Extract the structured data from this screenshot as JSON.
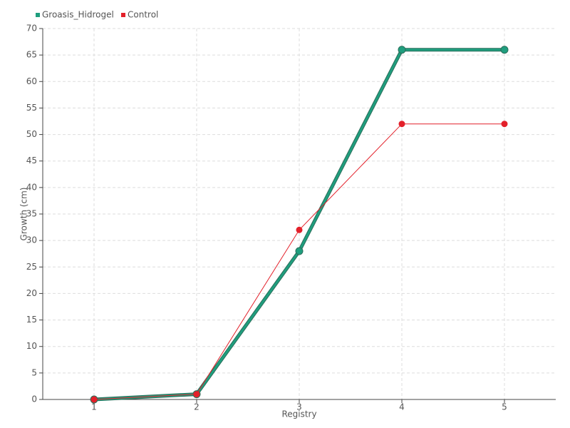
{
  "chart_data": {
    "type": "line",
    "x_label": "Registry",
    "y_label": "Growth (cm)",
    "x": [
      1,
      2,
      3,
      4,
      5
    ],
    "series": [
      {
        "name": "Groasis_Hidrogel",
        "color": "#1f9e7e",
        "values": [
          0,
          1,
          28,
          66,
          66
        ]
      },
      {
        "name": "Control",
        "color": "#e3202a",
        "values": [
          0,
          1,
          32,
          52,
          52
        ]
      }
    ],
    "xlim": [
      0.5,
      5.5
    ],
    "xticks": [
      1,
      2,
      3,
      4,
      5
    ],
    "ylim": [
      0,
      70
    ],
    "yticks": [
      0,
      5,
      10,
      15,
      20,
      25,
      30,
      35,
      40,
      45,
      50,
      55,
      60,
      65,
      70
    ],
    "grid": true,
    "legend": "top-left"
  }
}
